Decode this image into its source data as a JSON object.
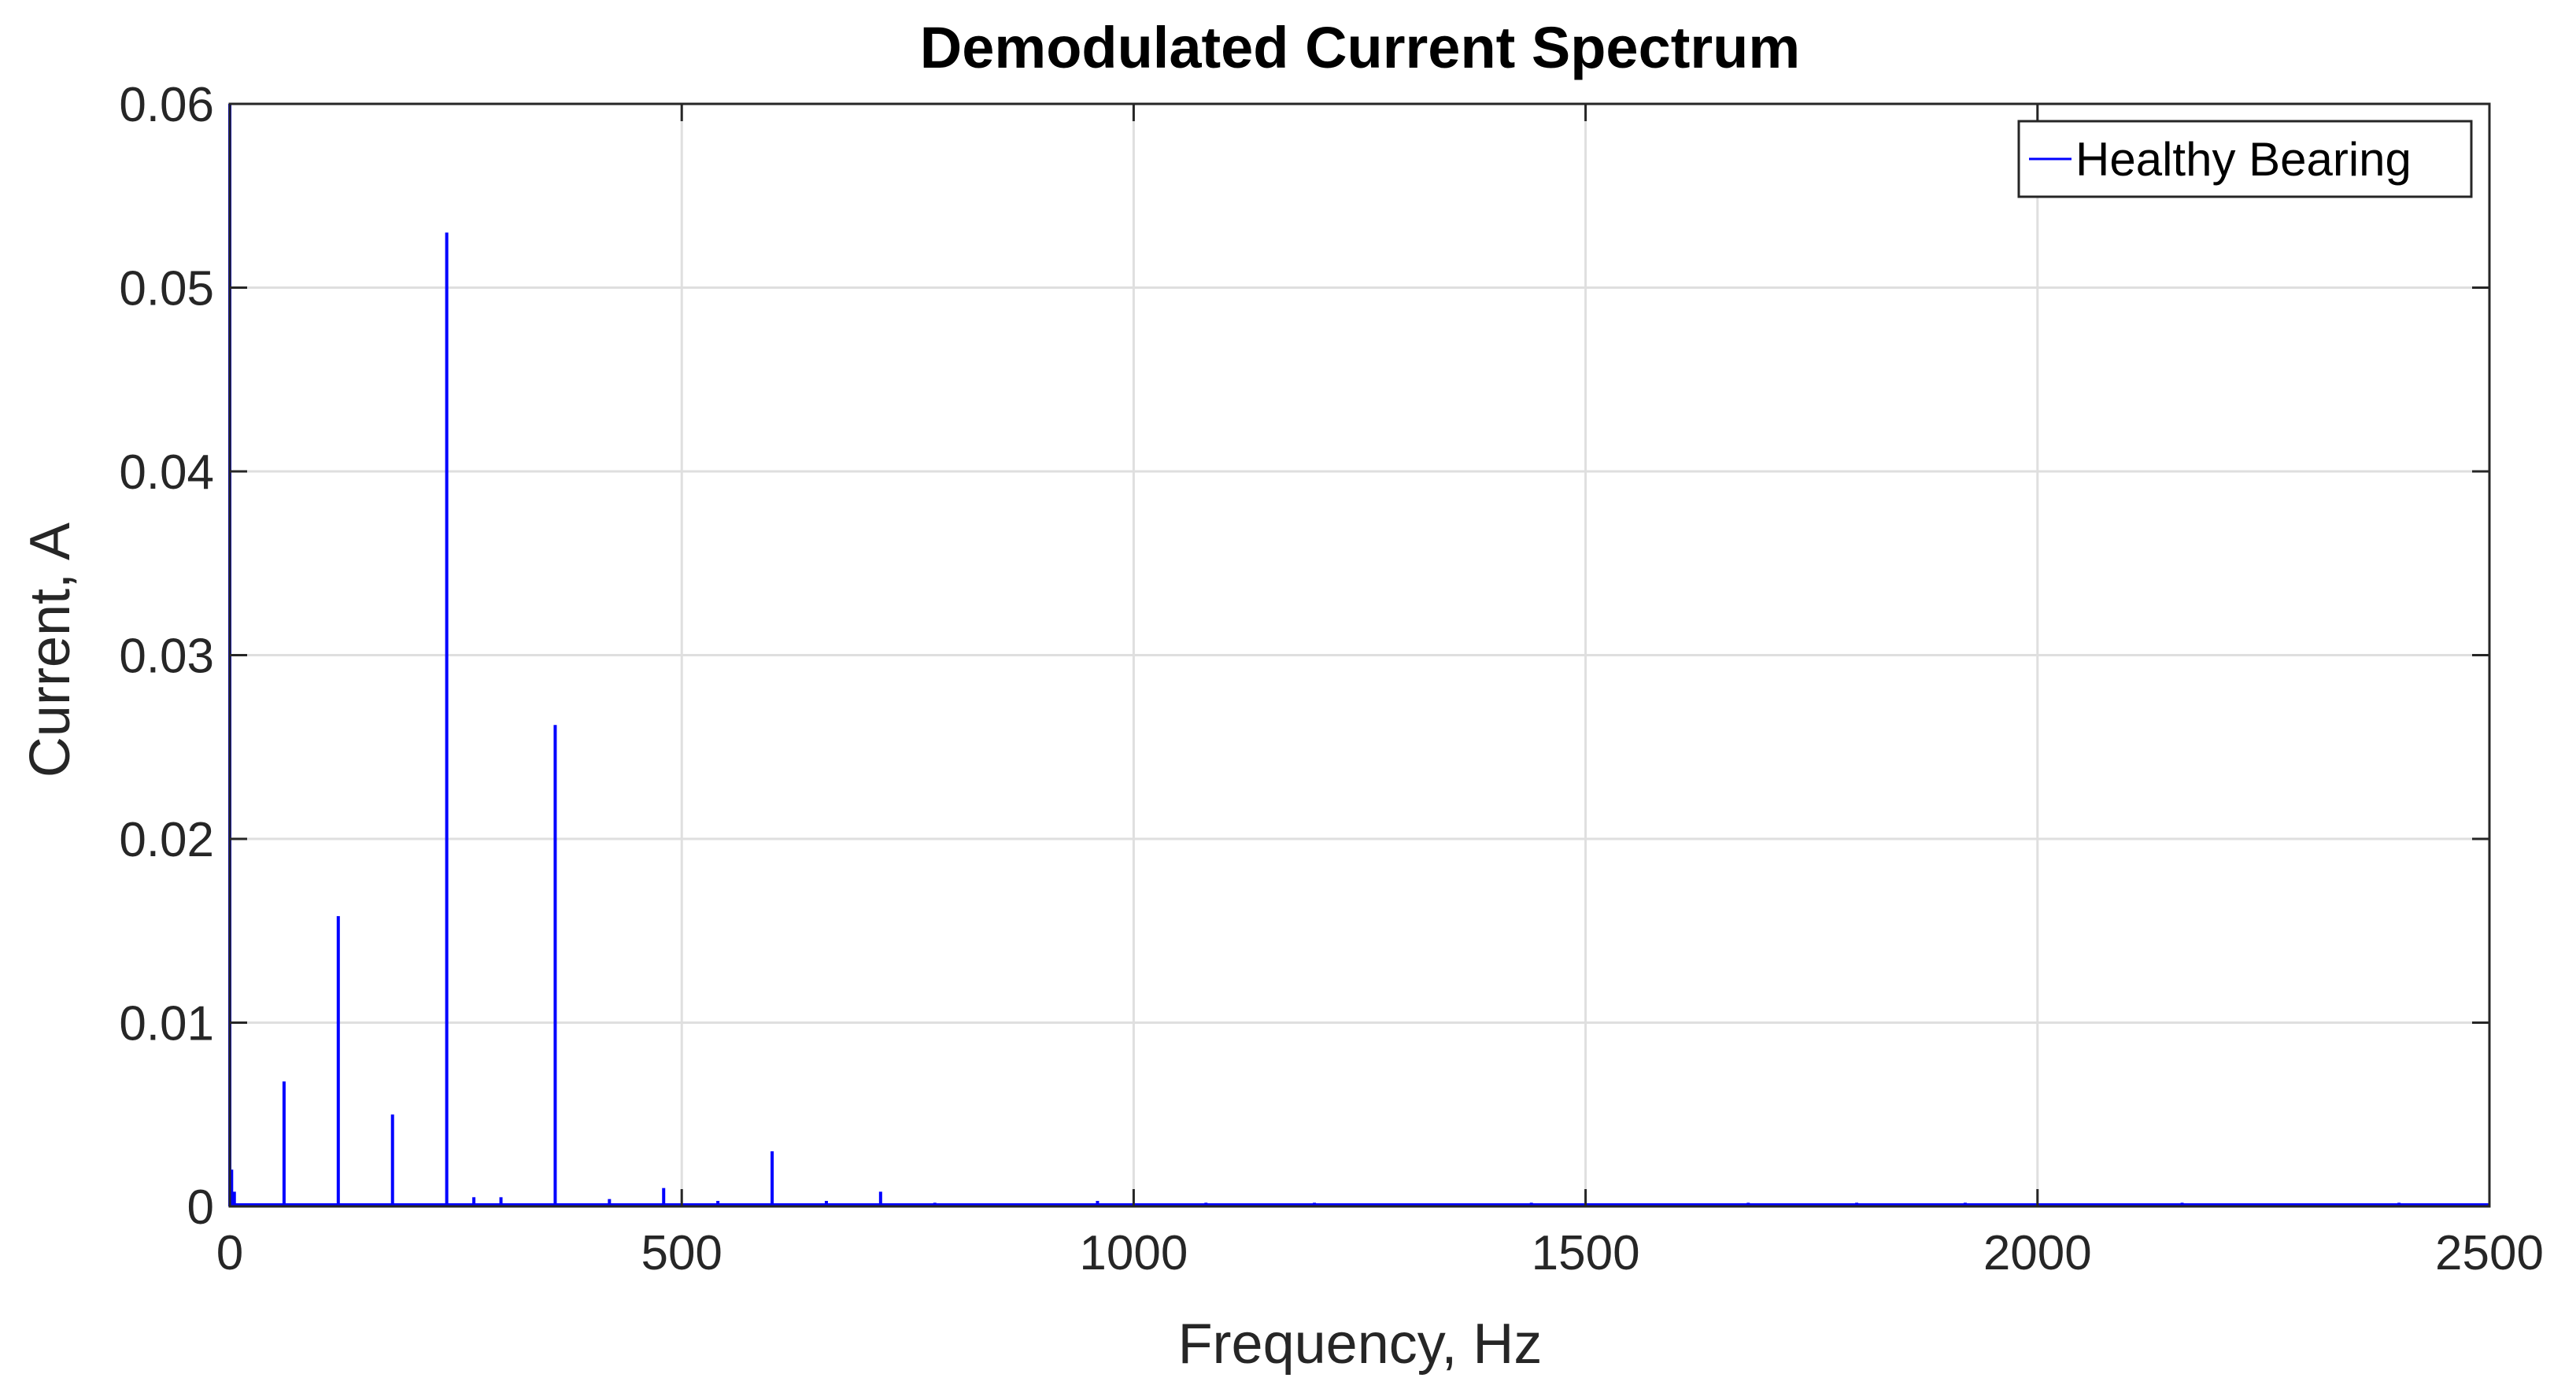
{
  "chart_data": {
    "type": "line",
    "title": "Demodulated Current Spectrum",
    "xlabel": "Frequency, Hz",
    "ylabel": "Current, A",
    "xlim": [
      0,
      2500
    ],
    "ylim": [
      0,
      0.06
    ],
    "xticks": [
      0,
      500,
      1000,
      1500,
      2000,
      2500
    ],
    "xtick_labels": [
      "0",
      "500",
      "1000",
      "1500",
      "2000",
      "2500"
    ],
    "yticks": [
      0,
      0.01,
      0.02,
      0.03,
      0.04,
      0.05,
      0.06
    ],
    "ytick_labels": [
      "0",
      "0.01",
      "0.02",
      "0.03",
      "0.04",
      "0.05",
      "0.06"
    ],
    "grid": true,
    "legend_position": "top-right",
    "series": [
      {
        "name": "Healthy Bearing",
        "color": "#0000ff",
        "peaks": [
          {
            "x": 0,
            "y": 0.06
          },
          {
            "x": 2,
            "y": 0.002
          },
          {
            "x": 5,
            "y": 0.0008
          },
          {
            "x": 60,
            "y": 0.0068
          },
          {
            "x": 120,
            "y": 0.0158
          },
          {
            "x": 180,
            "y": 0.005
          },
          {
            "x": 240,
            "y": 0.053
          },
          {
            "x": 270,
            "y": 0.0005
          },
          {
            "x": 300,
            "y": 0.0005
          },
          {
            "x": 360,
            "y": 0.0262
          },
          {
            "x": 420,
            "y": 0.0004
          },
          {
            "x": 480,
            "y": 0.001
          },
          {
            "x": 540,
            "y": 0.0003
          },
          {
            "x": 600,
            "y": 0.003
          },
          {
            "x": 660,
            "y": 0.0003
          },
          {
            "x": 720,
            "y": 0.0008
          },
          {
            "x": 780,
            "y": 0.0002
          },
          {
            "x": 960,
            "y": 0.0003
          },
          {
            "x": 1080,
            "y": 0.0002
          },
          {
            "x": 1200,
            "y": 0.0002
          },
          {
            "x": 1440,
            "y": 0.0002
          },
          {
            "x": 1680,
            "y": 0.0002
          },
          {
            "x": 1800,
            "y": 0.0002
          },
          {
            "x": 1920,
            "y": 0.0002
          },
          {
            "x": 2160,
            "y": 0.0002
          },
          {
            "x": 2400,
            "y": 0.0002
          }
        ]
      }
    ]
  }
}
